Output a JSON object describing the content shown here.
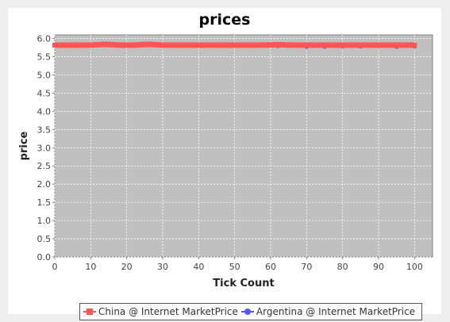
{
  "chart_data": {
    "type": "line",
    "title": "prices",
    "xlabel": "Tick Count",
    "ylabel": "price",
    "xlim": [
      0,
      105
    ],
    "ylim": [
      0,
      6.1
    ],
    "xticks": [
      "0",
      "10",
      "20",
      "30",
      "40",
      "50",
      "60",
      "70",
      "80",
      "90",
      "100"
    ],
    "yticks": [
      "0.0",
      "0.5",
      "1.0",
      "1.5",
      "2.0",
      "2.5",
      "3.0",
      "3.5",
      "4.0",
      "4.5",
      "5.0",
      "5.5",
      "6.0"
    ],
    "grid": true,
    "legend_position": "bottom",
    "series": [
      {
        "name": "China @ Internet MarketPrice",
        "color": "#ff5555",
        "marker": "square",
        "x": [
          0,
          5,
          10,
          14,
          18,
          22,
          26,
          30,
          34,
          38,
          42,
          46,
          50,
          54,
          58,
          62,
          66,
          70,
          74,
          78,
          82,
          86,
          90,
          94,
          98,
          100
        ],
        "y": [
          5.82,
          5.82,
          5.82,
          5.84,
          5.82,
          5.82,
          5.84,
          5.82,
          5.82,
          5.82,
          5.82,
          5.82,
          5.82,
          5.82,
          5.82,
          5.83,
          5.82,
          5.82,
          5.82,
          5.82,
          5.82,
          5.82,
          5.82,
          5.82,
          5.82,
          5.82
        ]
      },
      {
        "name": "Argentina @ Internet MarketPrice",
        "color": "#5555ff",
        "marker": "circle",
        "x": [
          0,
          5,
          10,
          14,
          20,
          26,
          32,
          38,
          44,
          50,
          56,
          60,
          62,
          66,
          70,
          75,
          80,
          85,
          90,
          95,
          100
        ],
        "y": [
          5.82,
          5.82,
          5.82,
          5.83,
          5.84,
          5.83,
          5.84,
          5.82,
          5.82,
          5.82,
          5.82,
          5.82,
          5.79,
          5.8,
          5.77,
          5.77,
          5.78,
          5.78,
          5.79,
          5.77,
          5.78
        ]
      }
    ]
  }
}
